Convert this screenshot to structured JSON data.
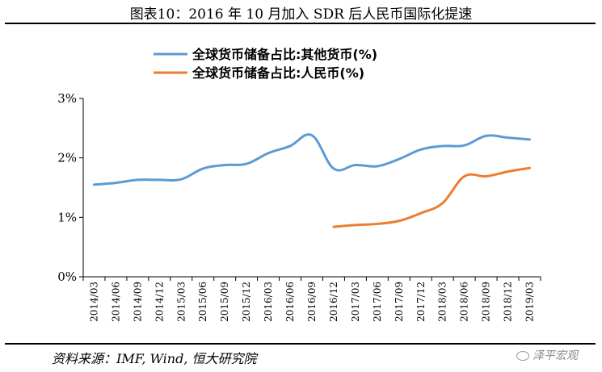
{
  "figure": {
    "title": "图表10：2016 年 10 月加入 SDR 后人民币国际化提速",
    "source": "资料来源：IMF, Wind, 恒大研究院",
    "watermark": "泽平宏观"
  },
  "chart_data": {
    "type": "line",
    "title": "",
    "xlabel": "",
    "ylabel": "",
    "ylim": [
      0,
      3
    ],
    "y_ticks": [
      "0%",
      "1%",
      "2%",
      "3%"
    ],
    "grid": false,
    "legend_position": "top",
    "categories": [
      "2014/03",
      "2014/06",
      "2014/09",
      "2014/12",
      "2015/03",
      "2015/06",
      "2015/09",
      "2015/12",
      "2016/03",
      "2016/06",
      "2016/09",
      "2016/12",
      "2017/03",
      "2017/06",
      "2017/09",
      "2017/12",
      "2018/03",
      "2018/06",
      "2018/09",
      "2018/12",
      "2019/03"
    ],
    "series": [
      {
        "name": "全球货币储备占比:其他货币(%)",
        "color": "#5b9bd5",
        "values": [
          1.55,
          1.58,
          1.63,
          1.63,
          1.64,
          1.82,
          1.88,
          1.9,
          2.08,
          2.2,
          2.38,
          1.82,
          1.88,
          1.86,
          1.98,
          2.14,
          2.2,
          2.21,
          2.37,
          2.34,
          2.31
        ]
      },
      {
        "name": "全球货币储备占比:人民币(%)",
        "color": "#ed7d31",
        "values": [
          null,
          null,
          null,
          null,
          null,
          null,
          null,
          null,
          null,
          null,
          null,
          0.84,
          0.87,
          0.89,
          0.94,
          1.07,
          1.24,
          1.69,
          1.69,
          1.77,
          1.83
        ]
      }
    ]
  }
}
